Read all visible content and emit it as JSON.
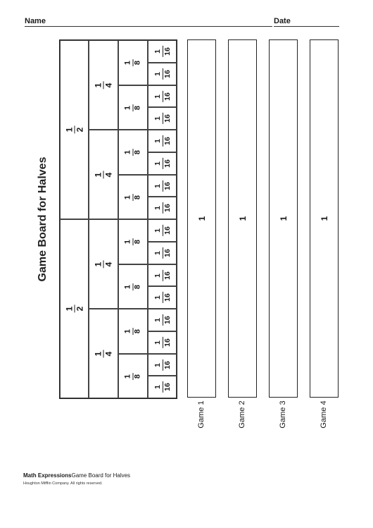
{
  "header": {
    "name_label": "Name",
    "date_label": "Date"
  },
  "title": "Game Board for Halves",
  "board": {
    "halves": [
      {
        "num": "1",
        "den": "2"
      },
      {
        "num": "1",
        "den": "2"
      }
    ],
    "quarters": [
      {
        "num": "1",
        "den": "4"
      },
      {
        "num": "1",
        "den": "4"
      },
      {
        "num": "1",
        "den": "4"
      },
      {
        "num": "1",
        "den": "4"
      }
    ],
    "eighths": [
      {
        "num": "1",
        "den": "8"
      },
      {
        "num": "1",
        "den": "8"
      },
      {
        "num": "1",
        "den": "8"
      },
      {
        "num": "1",
        "den": "8"
      },
      {
        "num": "1",
        "den": "8"
      },
      {
        "num": "1",
        "den": "8"
      },
      {
        "num": "1",
        "den": "8"
      },
      {
        "num": "1",
        "den": "8"
      }
    ],
    "sixteenths": [
      {
        "num": "1",
        "den": "16"
      },
      {
        "num": "1",
        "den": "16"
      },
      {
        "num": "1",
        "den": "16"
      },
      {
        "num": "1",
        "den": "16"
      },
      {
        "num": "1",
        "den": "16"
      },
      {
        "num": "1",
        "den": "16"
      },
      {
        "num": "1",
        "den": "16"
      },
      {
        "num": "1",
        "den": "16"
      },
      {
        "num": "1",
        "den": "16"
      },
      {
        "num": "1",
        "den": "16"
      },
      {
        "num": "1",
        "den": "16"
      },
      {
        "num": "1",
        "den": "16"
      },
      {
        "num": "1",
        "den": "16"
      },
      {
        "num": "1",
        "den": "16"
      },
      {
        "num": "1",
        "den": "16"
      },
      {
        "num": "1",
        "den": "16"
      }
    ]
  },
  "games": [
    {
      "label": "Game 1",
      "whole": "1"
    },
    {
      "label": "Game 2",
      "whole": "1"
    },
    {
      "label": "Game 3",
      "whole": "1"
    },
    {
      "label": "Game 4",
      "whole": "1"
    }
  ],
  "footer": {
    "brand": "Math Expressions",
    "subtitle": "Game Board for Halves",
    "copyright": "Houghton Mifflin Company. All rights reserved."
  }
}
